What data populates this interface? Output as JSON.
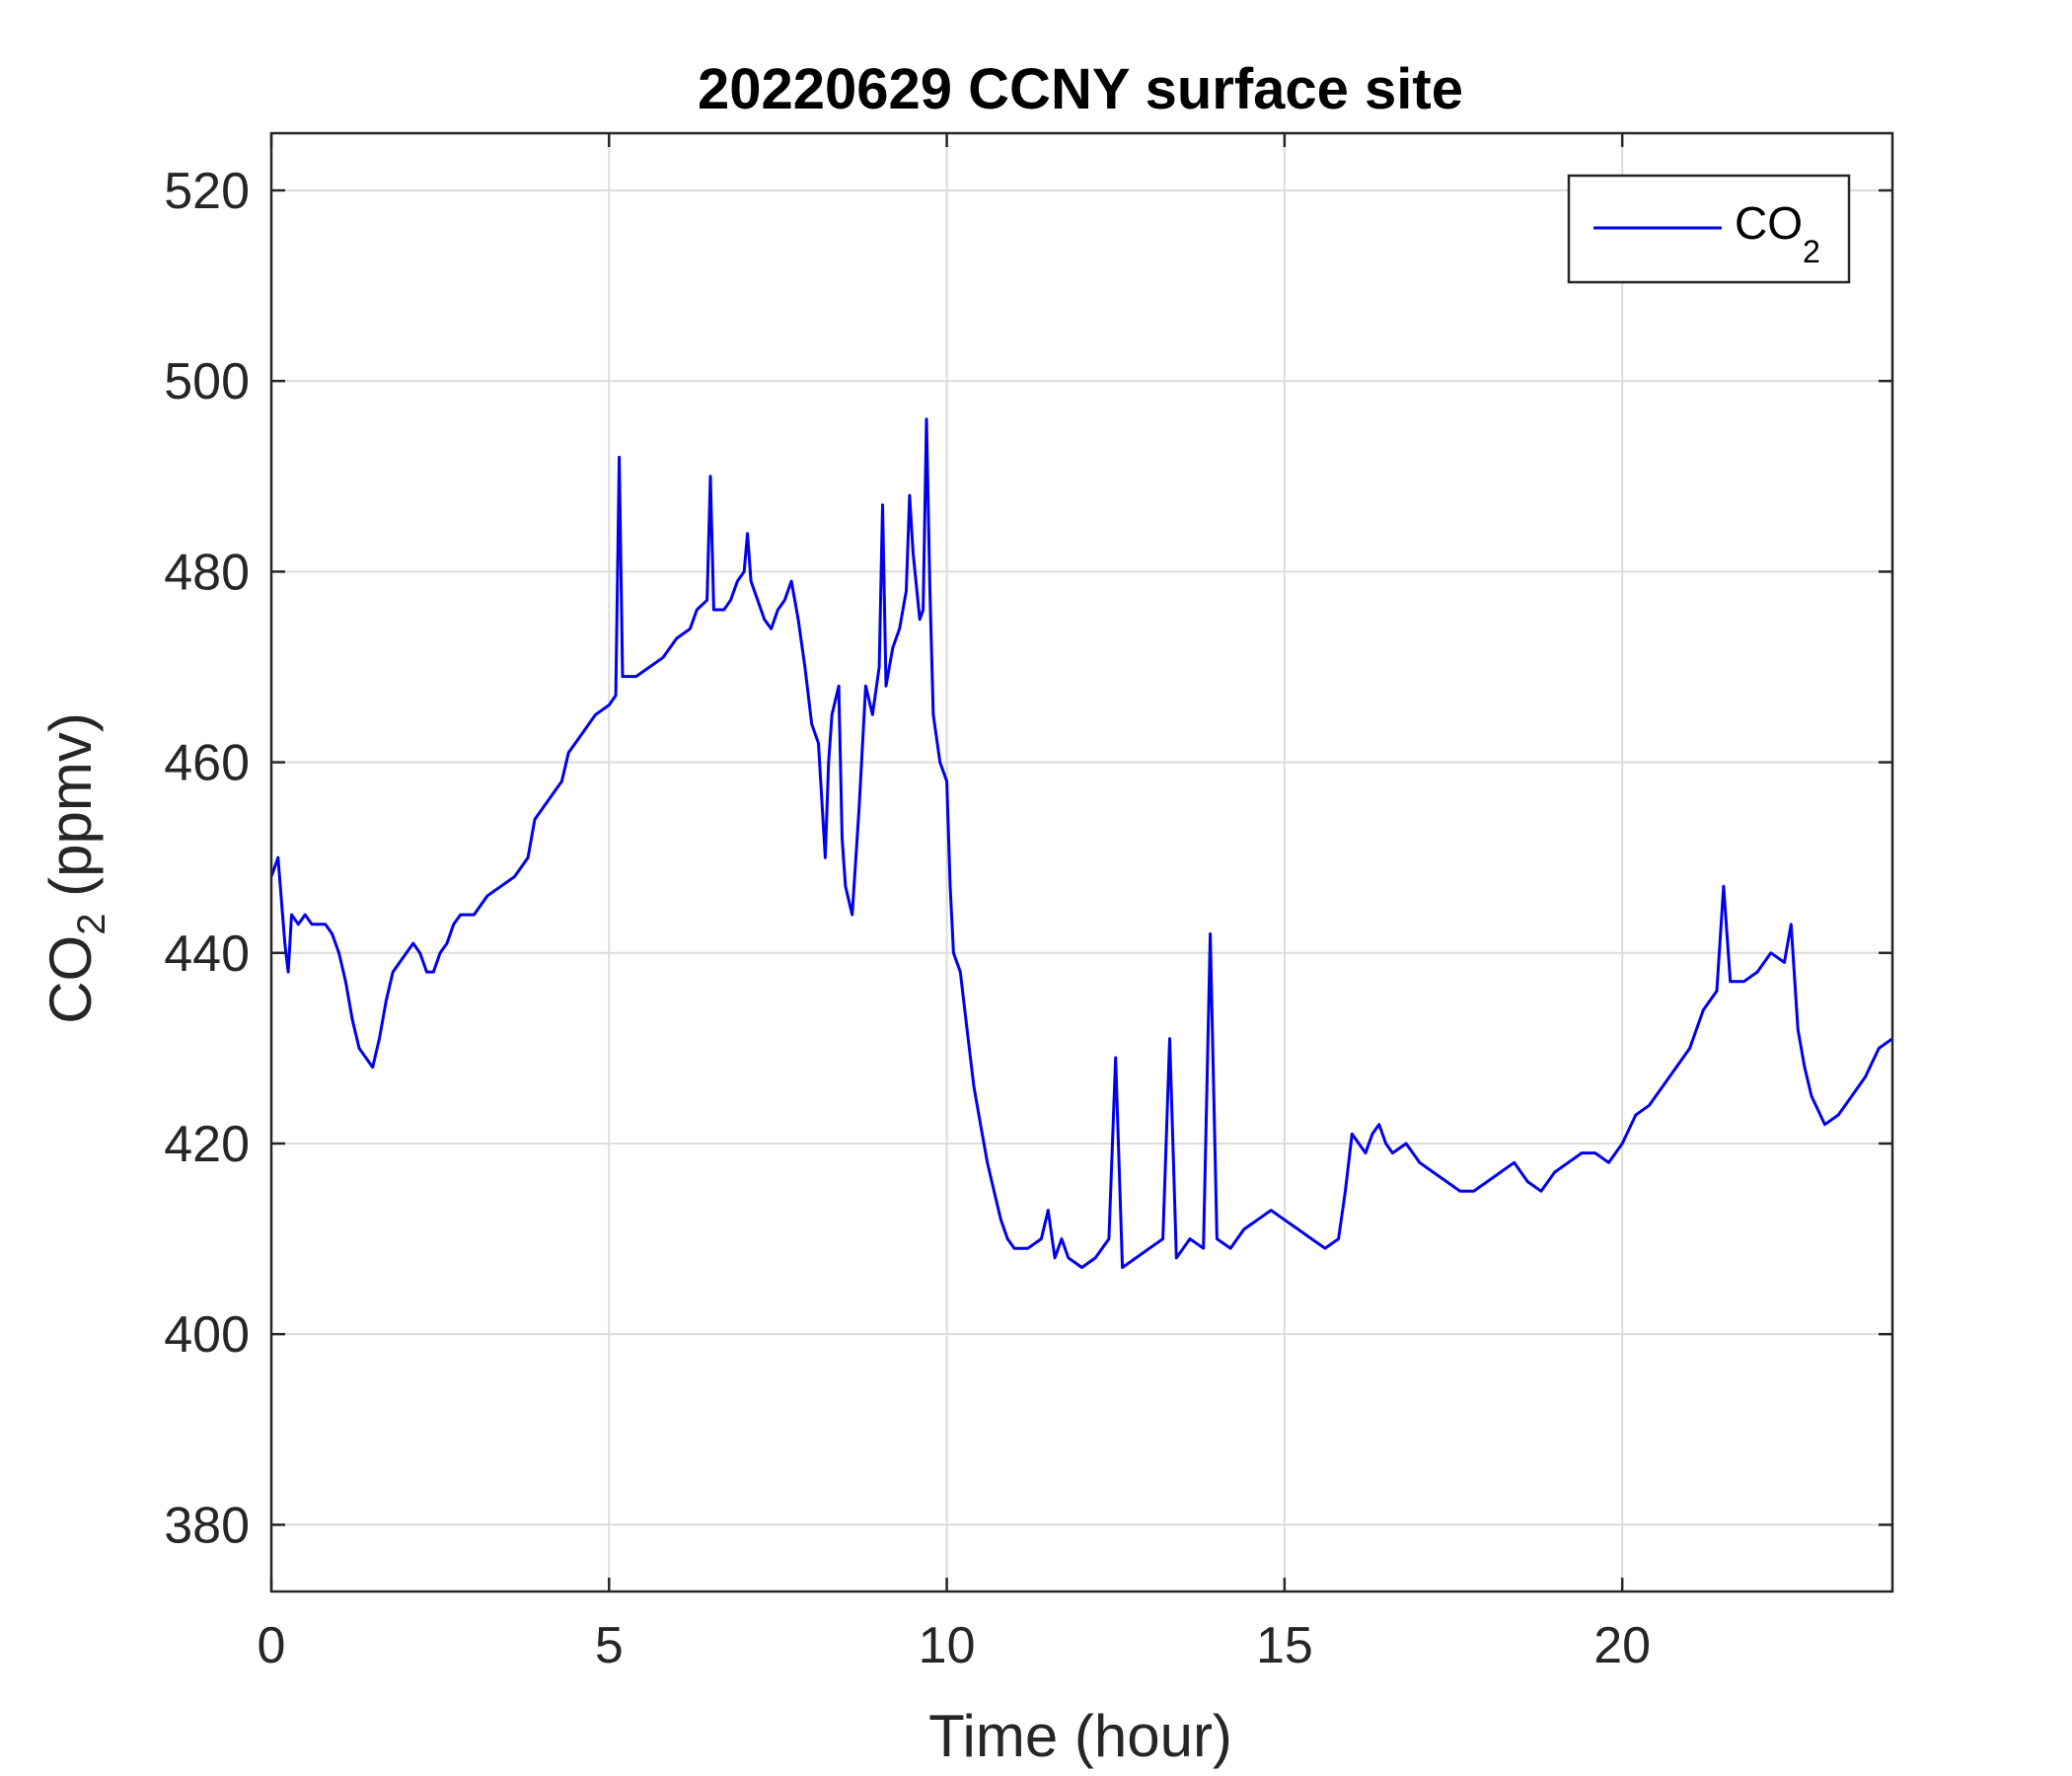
{
  "chart_data": {
    "type": "line",
    "title": "20220629 CCNY surface site",
    "xlabel": "Time (hour)",
    "ylabel_main": "CO",
    "ylabel_sub": "2",
    "ylabel_units": " (ppmv)",
    "xlim": [
      0,
      24
    ],
    "ylim": [
      373,
      526
    ],
    "xticks": [
      0,
      5,
      10,
      15,
      20
    ],
    "yticks": [
      380,
      400,
      420,
      440,
      460,
      480,
      500,
      520
    ],
    "grid": true,
    "legend_position": "top-right",
    "series": [
      {
        "name_main": "CO",
        "name_sub": "2",
        "color": "#0000ee",
        "points": [
          [
            0.0,
            448
          ],
          [
            0.1,
            450
          ],
          [
            0.2,
            441
          ],
          [
            0.25,
            438
          ],
          [
            0.3,
            444
          ],
          [
            0.4,
            443
          ],
          [
            0.5,
            444
          ],
          [
            0.6,
            443
          ],
          [
            0.8,
            443
          ],
          [
            0.9,
            442
          ],
          [
            1.0,
            440
          ],
          [
            1.1,
            437
          ],
          [
            1.2,
            433
          ],
          [
            1.3,
            430
          ],
          [
            1.4,
            429
          ],
          [
            1.5,
            428
          ],
          [
            1.6,
            431
          ],
          [
            1.7,
            435
          ],
          [
            1.8,
            438
          ],
          [
            1.9,
            439
          ],
          [
            2.0,
            440
          ],
          [
            2.1,
            441
          ],
          [
            2.2,
            440
          ],
          [
            2.3,
            438
          ],
          [
            2.4,
            438
          ],
          [
            2.5,
            440
          ],
          [
            2.6,
            441
          ],
          [
            2.7,
            443
          ],
          [
            2.8,
            444
          ],
          [
            3.0,
            444
          ],
          [
            3.2,
            446
          ],
          [
            3.4,
            447
          ],
          [
            3.6,
            448
          ],
          [
            3.8,
            450
          ],
          [
            3.9,
            454
          ],
          [
            4.0,
            455
          ],
          [
            4.2,
            457
          ],
          [
            4.3,
            458
          ],
          [
            4.4,
            461
          ],
          [
            4.5,
            462
          ],
          [
            4.6,
            463
          ],
          [
            4.8,
            465
          ],
          [
            5.0,
            466
          ],
          [
            5.1,
            467
          ],
          [
            5.15,
            492
          ],
          [
            5.2,
            469
          ],
          [
            5.4,
            469
          ],
          [
            5.6,
            470
          ],
          [
            5.8,
            471
          ],
          [
            6.0,
            473
          ],
          [
            6.2,
            474
          ],
          [
            6.3,
            476
          ],
          [
            6.45,
            477
          ],
          [
            6.5,
            490
          ],
          [
            6.55,
            476
          ],
          [
            6.7,
            476
          ],
          [
            6.8,
            477
          ],
          [
            6.9,
            479
          ],
          [
            7.0,
            480
          ],
          [
            7.05,
            484
          ],
          [
            7.1,
            479
          ],
          [
            7.2,
            477
          ],
          [
            7.3,
            475
          ],
          [
            7.4,
            474
          ],
          [
            7.5,
            476
          ],
          [
            7.6,
            477
          ],
          [
            7.7,
            479
          ],
          [
            7.8,
            475
          ],
          [
            7.9,
            470
          ],
          [
            8.0,
            464
          ],
          [
            8.1,
            462
          ],
          [
            8.2,
            450
          ],
          [
            8.25,
            460
          ],
          [
            8.3,
            465
          ],
          [
            8.4,
            468
          ],
          [
            8.45,
            452
          ],
          [
            8.5,
            447
          ],
          [
            8.6,
            444
          ],
          [
            8.7,
            455
          ],
          [
            8.8,
            468
          ],
          [
            8.9,
            465
          ],
          [
            9.0,
            470
          ],
          [
            9.05,
            487
          ],
          [
            9.1,
            468
          ],
          [
            9.2,
            472
          ],
          [
            9.3,
            474
          ],
          [
            9.4,
            478
          ],
          [
            9.45,
            488
          ],
          [
            9.5,
            482
          ],
          [
            9.6,
            475
          ],
          [
            9.65,
            476
          ],
          [
            9.7,
            496
          ],
          [
            9.75,
            478
          ],
          [
            9.8,
            465
          ],
          [
            9.9,
            460
          ],
          [
            10.0,
            458
          ],
          [
            10.05,
            447
          ],
          [
            10.1,
            440
          ],
          [
            10.2,
            438
          ],
          [
            10.3,
            432
          ],
          [
            10.4,
            426
          ],
          [
            10.5,
            422
          ],
          [
            10.6,
            418
          ],
          [
            10.7,
            415
          ],
          [
            10.8,
            412
          ],
          [
            10.9,
            410
          ],
          [
            11.0,
            409
          ],
          [
            11.2,
            409
          ],
          [
            11.4,
            410
          ],
          [
            11.5,
            413
          ],
          [
            11.6,
            408
          ],
          [
            11.7,
            410
          ],
          [
            11.8,
            408
          ],
          [
            12.0,
            407
          ],
          [
            12.2,
            408
          ],
          [
            12.4,
            410
          ],
          [
            12.5,
            429
          ],
          [
            12.6,
            407
          ],
          [
            12.8,
            408
          ],
          [
            13.0,
            409
          ],
          [
            13.2,
            410
          ],
          [
            13.3,
            431
          ],
          [
            13.4,
            408
          ],
          [
            13.6,
            410
          ],
          [
            13.8,
            409
          ],
          [
            13.9,
            442
          ],
          [
            14.0,
            410
          ],
          [
            14.2,
            409
          ],
          [
            14.4,
            411
          ],
          [
            14.6,
            412
          ],
          [
            14.8,
            413
          ],
          [
            15.0,
            412
          ],
          [
            15.2,
            411
          ],
          [
            15.4,
            410
          ],
          [
            15.6,
            409
          ],
          [
            15.8,
            410
          ],
          [
            15.9,
            415
          ],
          [
            16.0,
            421
          ],
          [
            16.1,
            420
          ],
          [
            16.2,
            419
          ],
          [
            16.3,
            421
          ],
          [
            16.4,
            422
          ],
          [
            16.5,
            420
          ],
          [
            16.6,
            419
          ],
          [
            16.8,
            420
          ],
          [
            17.0,
            418
          ],
          [
            17.2,
            417
          ],
          [
            17.4,
            416
          ],
          [
            17.6,
            415
          ],
          [
            17.8,
            415
          ],
          [
            18.0,
            416
          ],
          [
            18.2,
            417
          ],
          [
            18.4,
            418
          ],
          [
            18.6,
            416
          ],
          [
            18.8,
            415
          ],
          [
            19.0,
            417
          ],
          [
            19.2,
            418
          ],
          [
            19.4,
            419
          ],
          [
            19.6,
            419
          ],
          [
            19.8,
            418
          ],
          [
            20.0,
            420
          ],
          [
            20.2,
            423
          ],
          [
            20.4,
            424
          ],
          [
            20.6,
            426
          ],
          [
            20.8,
            428
          ],
          [
            21.0,
            430
          ],
          [
            21.2,
            434
          ],
          [
            21.4,
            436
          ],
          [
            21.5,
            447
          ],
          [
            21.6,
            437
          ],
          [
            21.8,
            437
          ],
          [
            22.0,
            438
          ],
          [
            22.2,
            440
          ],
          [
            22.4,
            439
          ],
          [
            22.5,
            443
          ],
          [
            22.6,
            432
          ],
          [
            22.7,
            428
          ],
          [
            22.8,
            425
          ],
          [
            23.0,
            422
          ],
          [
            23.2,
            423
          ],
          [
            23.4,
            425
          ],
          [
            23.6,
            427
          ],
          [
            23.8,
            430
          ],
          [
            24.0,
            431
          ]
        ]
      }
    ]
  }
}
